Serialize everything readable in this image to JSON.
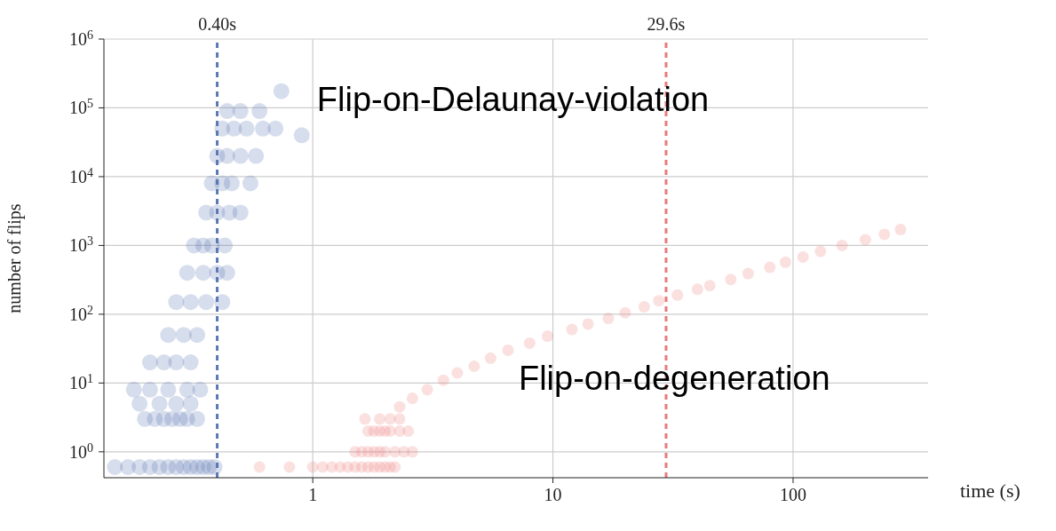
{
  "chart_data": {
    "type": "scatter",
    "xlabel": "time (s)",
    "ylabel": "number of flips",
    "log": "xy",
    "grid": true,
    "marker": "circle",
    "xlim": [
      0.135,
      365
    ],
    "xticks": [
      1,
      10,
      100
    ],
    "ylim": [
      0.42,
      1000000
    ],
    "yticks": [
      {
        "value": 1,
        "label": "10$^{0}$"
      },
      {
        "value": 10,
        "label": "10$^{1}$"
      },
      {
        "value": 100,
        "label": "10$^{2}$"
      },
      {
        "value": 1000,
        "label": "10$^{3}$"
      },
      {
        "value": 10000,
        "label": "10$^{4}$"
      },
      {
        "value": 100000,
        "label": "10$^{5}$"
      },
      {
        "value": 1000000,
        "label": "10$^{6}$"
      }
    ],
    "ref_lines": [
      {
        "axis": "x",
        "value": 0.4,
        "label": "0.40s",
        "color": "#5b78b4",
        "line_style": "dashed"
      },
      {
        "axis": "x",
        "value": 29.6,
        "label": "29.6s",
        "color": "#e8797b",
        "line_style": "dashed"
      }
    ],
    "series": [
      {
        "name": "Flip-on-Delaunay-violation",
        "color": "#5b78b4",
        "x": [
          0.15,
          0.17,
          0.19,
          0.21,
          0.23,
          0.25,
          0.27,
          0.29,
          0.31,
          0.33,
          0.35,
          0.37,
          0.39,
          0.2,
          0.22,
          0.24,
          0.26,
          0.28,
          0.3,
          0.33,
          0.19,
          0.23,
          0.27,
          0.31,
          0.18,
          0.21,
          0.25,
          0.3,
          0.34,
          0.21,
          0.24,
          0.27,
          0.31,
          0.25,
          0.29,
          0.33,
          0.27,
          0.31,
          0.36,
          0.42,
          0.3,
          0.35,
          0.4,
          0.44,
          0.32,
          0.35,
          0.38,
          0.43,
          0.36,
          0.4,
          0.45,
          0.5,
          0.38,
          0.42,
          0.46,
          0.55,
          0.4,
          0.44,
          0.5,
          0.58,
          0.42,
          0.47,
          0.53,
          0.62,
          0.7,
          0.44,
          0.5,
          0.6,
          0.74,
          0.9
        ],
        "values": [
          0.6,
          0.6,
          0.6,
          0.6,
          0.6,
          0.6,
          0.6,
          0.6,
          0.6,
          0.6,
          0.6,
          0.6,
          0.6,
          3,
          3,
          3,
          3,
          3,
          3,
          3,
          5,
          5,
          5,
          5,
          8,
          8,
          8,
          8,
          8,
          20,
          20,
          20,
          20,
          50,
          50,
          50,
          150,
          150,
          150,
          150,
          400,
          400,
          400,
          400,
          1000,
          1000,
          1000,
          1000,
          3000,
          3000,
          3000,
          3000,
          8000,
          8000,
          8000,
          8000,
          20000,
          20000,
          20000,
          20000,
          50000,
          50000,
          50000,
          50000,
          50000,
          90000,
          90000,
          90000,
          175000,
          40000
        ]
      },
      {
        "name": "Flip-on-degeneration",
        "color": "#ef8284",
        "x": [
          0.6,
          0.8,
          1.0,
          1.1,
          1.2,
          1.3,
          1.4,
          1.5,
          1.6,
          1.7,
          1.8,
          1.9,
          2.0,
          2.1,
          2.2,
          1.5,
          1.6,
          1.7,
          1.8,
          1.9,
          2.0,
          2.2,
          2.4,
          2.6,
          1.7,
          1.8,
          1.9,
          2.0,
          2.1,
          2.3,
          2.5,
          1.65,
          1.9,
          2.1,
          2.3,
          2.3,
          2.6,
          3,
          3.5,
          4,
          4.7,
          5.5,
          6.5,
          8,
          9.5,
          12,
          14,
          17,
          20,
          24,
          27.6,
          33,
          40,
          45,
          55,
          65,
          80,
          93,
          110,
          130,
          160,
          200,
          240,
          280
        ],
        "values": [
          0.6,
          0.6,
          0.6,
          0.6,
          0.6,
          0.6,
          0.6,
          0.6,
          0.6,
          0.6,
          0.6,
          0.6,
          0.6,
          0.6,
          0.6,
          1,
          1,
          1,
          1,
          1,
          1,
          1,
          1,
          1,
          2,
          2,
          2,
          2,
          2,
          2,
          2,
          3,
          3,
          3,
          3,
          4.5,
          6,
          8,
          11,
          14,
          17.5,
          23,
          30,
          38,
          48,
          60,
          72,
          87,
          105,
          128,
          157,
          190,
          230,
          260,
          320,
          390,
          480,
          570,
          680,
          820,
          1000,
          1210,
          1450,
          1700
        ]
      }
    ]
  }
}
